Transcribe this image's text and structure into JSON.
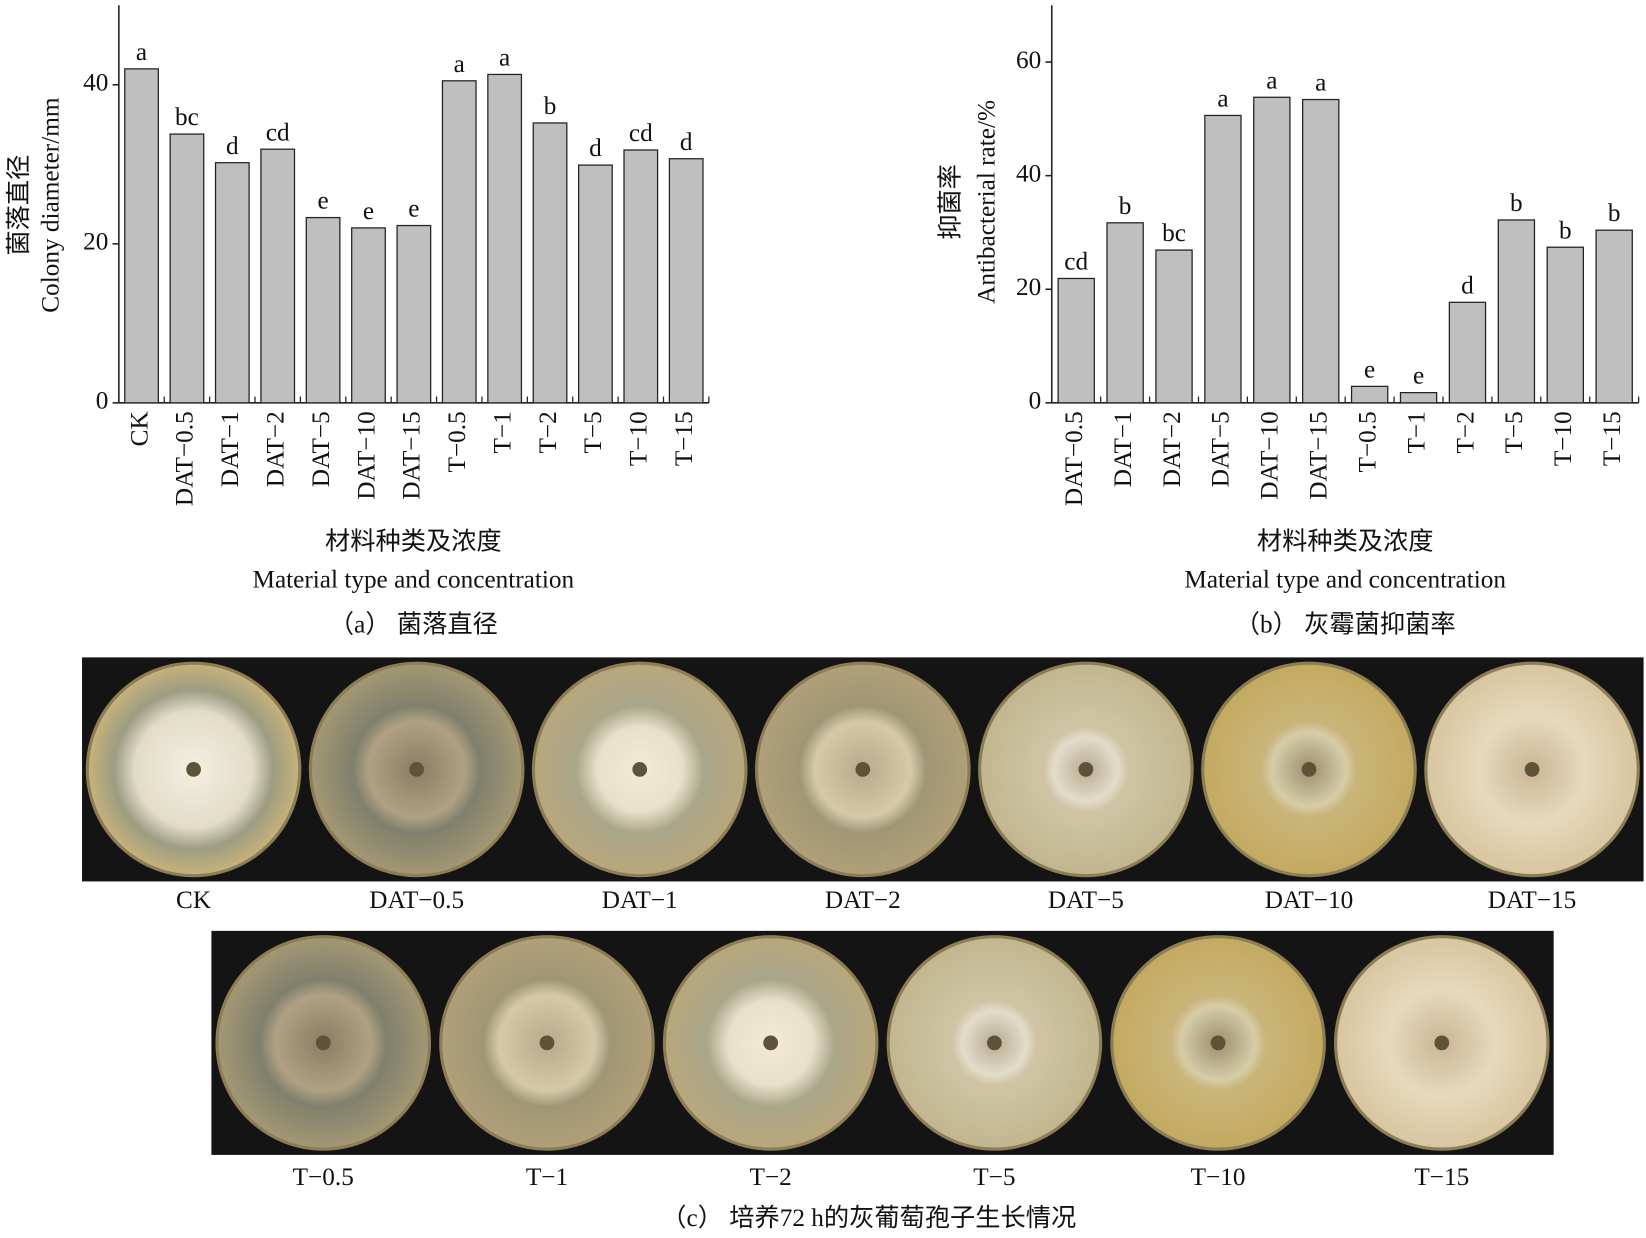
{
  "chart_data": [
    {
      "type": "bar",
      "ylabel_zh": "菌落直径",
      "ylabel": "Colony diameter/mm",
      "xlabel_zh": "材料种类及浓度",
      "xlabel": "Material type and concentration",
      "caption": "（a） 菌落直径",
      "categories": [
        "CK",
        "DAT−0.5",
        "DAT−1",
        "DAT−2",
        "DAT−5",
        "DAT−10",
        "DAT−15",
        "T−0.5",
        "T−1",
        "T−2",
        "T−5",
        "T−10",
        "T−15"
      ],
      "values": [
        42.0,
        33.8,
        30.2,
        31.9,
        23.3,
        22.0,
        22.3,
        40.5,
        41.3,
        35.2,
        29.9,
        31.8,
        30.7
      ],
      "significance": [
        "a",
        "bc",
        "d",
        "cd",
        "e",
        "e",
        "e",
        "a",
        "a",
        "b",
        "d",
        "cd",
        "d"
      ],
      "color": "#bfbfbf",
      "ylim": [
        0,
        50
      ],
      "yticks": [
        0,
        20,
        40
      ],
      "grid": false
    },
    {
      "type": "bar",
      "ylabel_zh": "抑菌率",
      "ylabel": "Antibacterial rate/%",
      "xlabel_zh": "材料种类及浓度",
      "xlabel": "Material type and concentration",
      "caption": "（b） 灰霉菌抑菌率",
      "categories": [
        "DAT−0.5",
        "DAT−1",
        "DAT−2",
        "DAT−5",
        "DAT−10",
        "DAT−15",
        "T−0.5",
        "T−1",
        "T−2",
        "T−5",
        "T−10",
        "T−15"
      ],
      "values": [
        21.9,
        31.7,
        26.9,
        50.6,
        53.8,
        53.4,
        2.9,
        1.8,
        17.7,
        32.2,
        27.4,
        30.4
      ],
      "significance": [
        "cd",
        "b",
        "bc",
        "a",
        "a",
        "a",
        "e",
        "e",
        "d",
        "b",
        "b",
        "b"
      ],
      "color": "#bfbfbf",
      "ylim": [
        0,
        70
      ],
      "yticks": [
        0,
        20,
        40,
        60
      ],
      "grid": false
    }
  ],
  "photos": {
    "row1": [
      "CK",
      "DAT−0.5",
      "DAT−1",
      "DAT−2",
      "DAT−5",
      "DAT−10",
      "DAT−15"
    ],
    "row2": [
      "T−0.5",
      "T−1",
      "T−2",
      "T−5",
      "T−10",
      "T−15"
    ],
    "caption": "（c） 培养72 h的灰葡萄孢子生长情况"
  }
}
